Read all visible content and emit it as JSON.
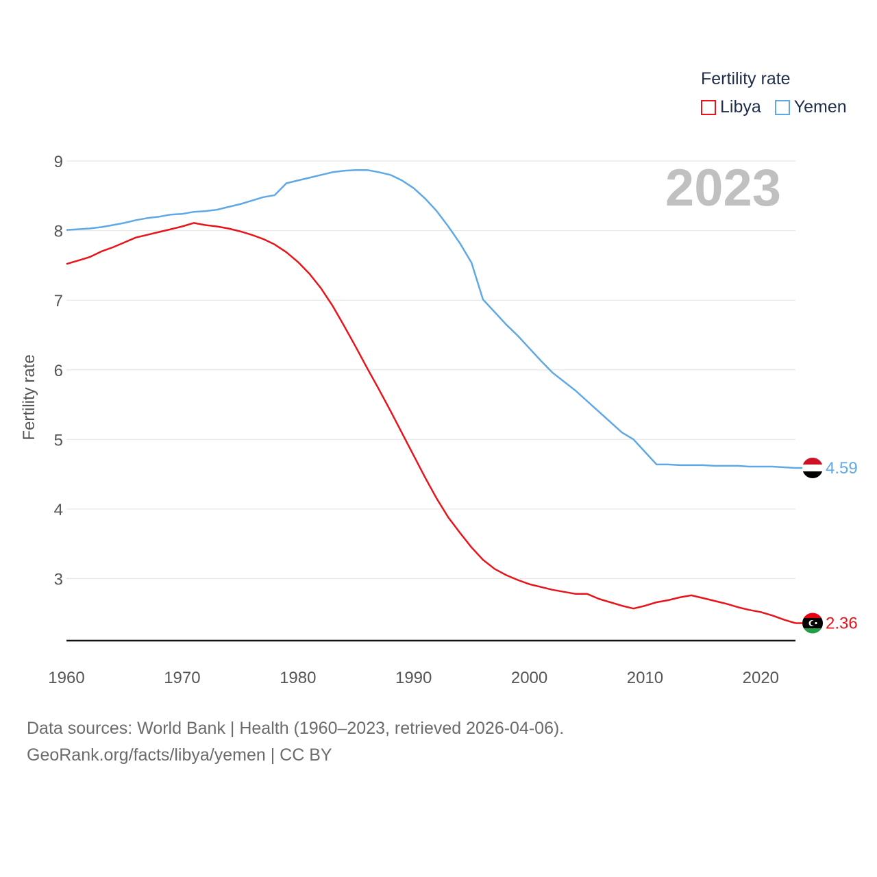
{
  "chart_data": {
    "type": "line",
    "title": "",
    "xlabel": "",
    "ylabel": "Fertility rate",
    "year_label": "2023",
    "xlim": [
      1960,
      2023
    ],
    "ylim": [
      2.1,
      9.0
    ],
    "yticks": [
      3,
      4,
      5,
      6,
      7,
      8,
      9
    ],
    "xticks": [
      1960,
      1970,
      1980,
      1990,
      2000,
      2010,
      2020
    ],
    "legend": {
      "title": "Fertility rate",
      "position": "top-right"
    },
    "x": [
      1960,
      1961,
      1962,
      1963,
      1964,
      1965,
      1966,
      1967,
      1968,
      1969,
      1970,
      1971,
      1972,
      1973,
      1974,
      1975,
      1976,
      1977,
      1978,
      1979,
      1980,
      1981,
      1982,
      1983,
      1984,
      1985,
      1986,
      1987,
      1988,
      1989,
      1990,
      1991,
      1992,
      1993,
      1994,
      1995,
      1996,
      1997,
      1998,
      1999,
      2000,
      2001,
      2002,
      2003,
      2004,
      2005,
      2006,
      2007,
      2008,
      2009,
      2010,
      2011,
      2012,
      2013,
      2014,
      2015,
      2016,
      2017,
      2018,
      2019,
      2020,
      2021,
      2022,
      2023
    ],
    "series": [
      {
        "name": "Libya",
        "color": "#e8141b",
        "end_label": "2.36",
        "values": [
          7.52,
          7.57,
          7.62,
          7.7,
          7.76,
          7.83,
          7.9,
          7.94,
          7.98,
          8.02,
          8.06,
          8.11,
          8.08,
          8.06,
          8.03,
          7.99,
          7.94,
          7.88,
          7.8,
          7.69,
          7.55,
          7.38,
          7.17,
          6.92,
          6.63,
          6.33,
          6.02,
          5.72,
          5.41,
          5.09,
          4.77,
          4.45,
          4.15,
          3.88,
          3.66,
          3.45,
          3.27,
          3.14,
          3.05,
          2.98,
          2.92,
          2.88,
          2.84,
          2.81,
          2.78,
          2.78,
          2.71,
          2.66,
          2.61,
          2.57,
          2.61,
          2.66,
          2.69,
          2.73,
          2.76,
          2.72,
          2.68,
          2.64,
          2.59,
          2.55,
          2.52,
          2.47,
          2.41,
          2.36
        ]
      },
      {
        "name": "Yemen",
        "color": "#5fa8e6",
        "end_label": "4.59",
        "values": [
          8.01,
          8.02,
          8.03,
          8.05,
          8.08,
          8.11,
          8.15,
          8.18,
          8.2,
          8.23,
          8.24,
          8.27,
          8.28,
          8.3,
          8.34,
          8.38,
          8.43,
          8.48,
          8.51,
          8.68,
          8.72,
          8.76,
          8.8,
          8.84,
          8.86,
          8.87,
          8.87,
          8.84,
          8.8,
          8.72,
          8.61,
          8.46,
          8.28,
          8.06,
          7.82,
          7.54,
          7.01,
          6.83,
          6.65,
          6.49,
          6.31,
          6.13,
          5.96,
          5.83,
          5.7,
          5.55,
          5.4,
          5.25,
          5.1,
          5.0,
          4.82,
          4.64,
          4.64,
          4.63,
          4.63,
          4.63,
          4.62,
          4.62,
          4.62,
          4.61,
          4.61,
          4.61,
          4.6,
          4.59
        ]
      }
    ]
  },
  "footer": {
    "line1": "Data sources: World Bank | Health (1960–2023, retrieved 2026-04-06).",
    "line2": "GeoRank.org/facts/libya/yemen | CC BY"
  }
}
